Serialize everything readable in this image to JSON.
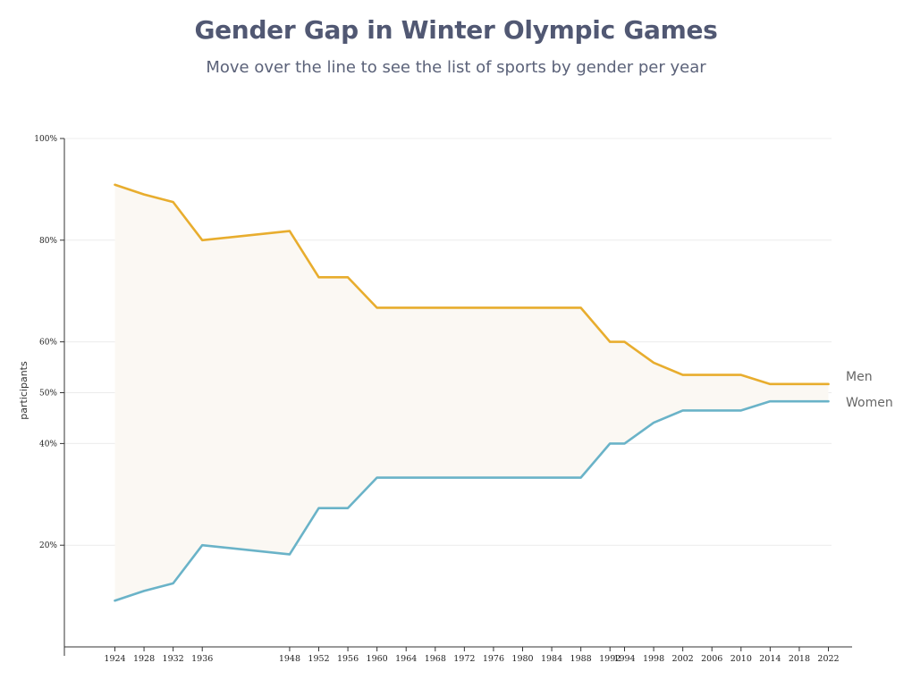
{
  "title": "Gender Gap in Winter Olympic Games",
  "subtitle": "Move over the line to see the list of sports by gender per year",
  "chart_data": {
    "type": "line",
    "title": "Gender Gap in Winter Olympic Games",
    "subtitle": "Move over the line to see the list of sports by gender per year",
    "xlabel": "",
    "ylabel": "participants",
    "x": [
      1924,
      1928,
      1932,
      1936,
      1948,
      1952,
      1956,
      1960,
      1964,
      1968,
      1972,
      1976,
      1980,
      1984,
      1988,
      1992,
      1994,
      1998,
      2002,
      2006,
      2010,
      2014,
      2018,
      2022
    ],
    "x_ticks": [
      "1924",
      "1928",
      "1932",
      "1936",
      "1948",
      "1952",
      "1956",
      "1960",
      "1964",
      "1968",
      "1972",
      "1976",
      "1980",
      "1984",
      "1988",
      "1992",
      "1994",
      "1998",
      "2002",
      "2006",
      "2010",
      "2014",
      "2018",
      "2022"
    ],
    "y_ticks": [
      {
        "value": 100,
        "label": "100%"
      },
      {
        "value": 80,
        "label": "80%"
      },
      {
        "value": 60,
        "label": "60%"
      },
      {
        "value": 50,
        "label": "50%"
      },
      {
        "value": 40,
        "label": "40%"
      },
      {
        "value": 20,
        "label": "20%"
      }
    ],
    "ylim": [
      0,
      100
    ],
    "grid": true,
    "series": [
      {
        "name": "Men",
        "color": "#e8ad2e",
        "points": [
          [
            1924,
            90.9
          ],
          [
            1928,
            89.0
          ],
          [
            1932,
            87.5
          ],
          [
            1936,
            80.0
          ],
          [
            1948,
            81.8
          ],
          [
            1952,
            72.7
          ],
          [
            1956,
            72.7
          ],
          [
            1960,
            66.7
          ],
          [
            1988,
            66.7
          ],
          [
            1992,
            60.0
          ],
          [
            1994,
            60.0
          ],
          [
            1998,
            55.9
          ],
          [
            2002,
            53.5
          ],
          [
            2010,
            53.5
          ],
          [
            2014,
            51.7
          ],
          [
            2022,
            51.7
          ]
        ]
      },
      {
        "name": "Women",
        "color": "#6ab3c8",
        "points": [
          [
            1924,
            9.1
          ],
          [
            1928,
            11.0
          ],
          [
            1932,
            12.5
          ],
          [
            1936,
            20.0
          ],
          [
            1948,
            18.2
          ],
          [
            1952,
            27.3
          ],
          [
            1956,
            27.3
          ],
          [
            1960,
            33.3
          ],
          [
            1988,
            33.3
          ],
          [
            1992,
            40.0
          ],
          [
            1994,
            40.0
          ],
          [
            1998,
            44.1
          ],
          [
            2002,
            46.5
          ],
          [
            2010,
            46.5
          ],
          [
            2014,
            48.3
          ],
          [
            2022,
            48.3
          ]
        ]
      }
    ],
    "gap_fill_color": "#fbf8f3",
    "legend": "inline-right"
  }
}
